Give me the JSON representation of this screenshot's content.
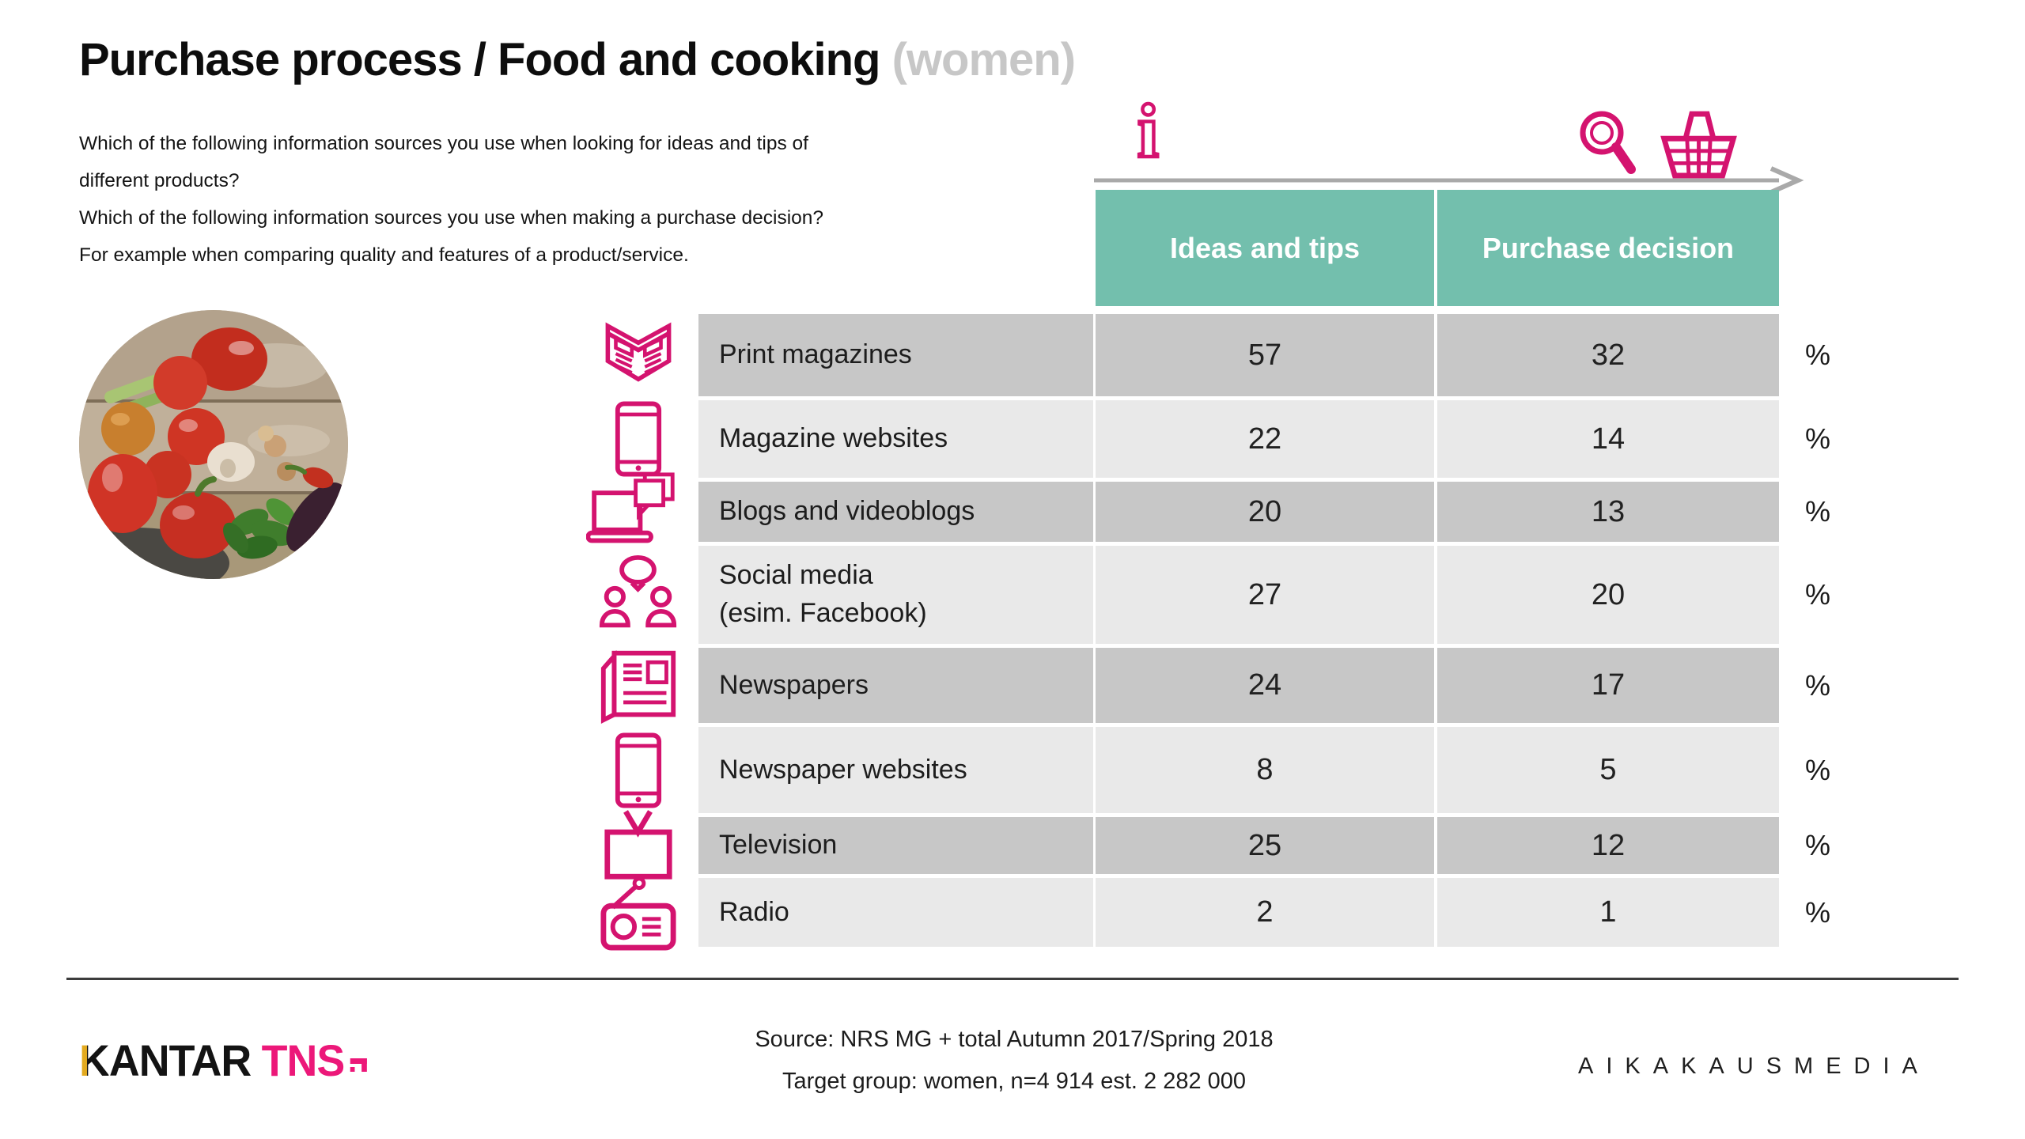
{
  "title": {
    "main": "Purchase process / Food and cooking",
    "suffix": "(women)"
  },
  "questions": [
    "Which of the following information sources you use when looking for ideas and tips of\ndifferent products?",
    "Which of the following information sources you use when making a purchase decision?\nFor example when comparing quality and features of a product/service.",
    ""
  ],
  "header_icons": {
    "info_glyph": "i",
    "icons": [
      "info-icon",
      "magnifier-icon",
      "basket-icon"
    ]
  },
  "table": {
    "columns": [
      "Ideas and tips",
      "Purchase decision"
    ],
    "unit": "%",
    "rows": [
      {
        "icon": "magazine-icon",
        "label": "Print magazines",
        "ideas": 57,
        "purchase": 32
      },
      {
        "icon": "tablet-icon",
        "label": "Magazine websites",
        "ideas": 22,
        "purchase": 14
      },
      {
        "icon": "laptop-blog-icon",
        "label": "Blogs and videoblogs",
        "ideas": 20,
        "purchase": 13
      },
      {
        "icon": "social-people-icon",
        "label": "Social media\n(esim. Facebook)",
        "ideas": 27,
        "purchase": 20
      },
      {
        "icon": "newspaper-icon",
        "label": "Newspapers",
        "ideas": 24,
        "purchase": 17
      },
      {
        "icon": "tablet-icon",
        "label": "Newspaper websites",
        "ideas": 8,
        "purchase": 5
      },
      {
        "icon": "tv-icon",
        "label": "Television",
        "ideas": 25,
        "purchase": 12
      },
      {
        "icon": "radio-icon",
        "label": "Radio",
        "ideas": 2,
        "purchase": 1
      }
    ]
  },
  "chart_data": {
    "type": "table",
    "title": "Purchase process / Food and cooking (women)",
    "categories": [
      "Print magazines",
      "Magazine websites",
      "Blogs and videoblogs",
      "Social media (esim. Facebook)",
      "Newspapers",
      "Newspaper websites",
      "Television",
      "Radio"
    ],
    "series": [
      {
        "name": "Ideas and tips",
        "values": [
          57,
          22,
          20,
          27,
          24,
          8,
          25,
          2
        ]
      },
      {
        "name": "Purchase decision",
        "values": [
          32,
          14,
          13,
          20,
          17,
          5,
          12,
          1
        ]
      }
    ],
    "unit": "%"
  },
  "footer": {
    "source_line1": "Source: NRS MG + total Autumn 2017/Spring 2018",
    "source_line2": "Target group: women, n=4 914 est. 2 282 000",
    "logo_left_kantar": "KANTAR",
    "logo_left_tns": "TNS",
    "logo_right": "AIKAKAUSMEDIA"
  },
  "colors": {
    "accent_pink": "#d4136f",
    "header_teal": "#73bfad",
    "row_dark": "#c7c7c7",
    "row_light": "#e9e9e9",
    "title_gray": "#c7c7c7",
    "tns_pink": "#ec1879",
    "kantar_gold": "#e3aa1f",
    "arrow_gray": "#a9a9a9"
  }
}
